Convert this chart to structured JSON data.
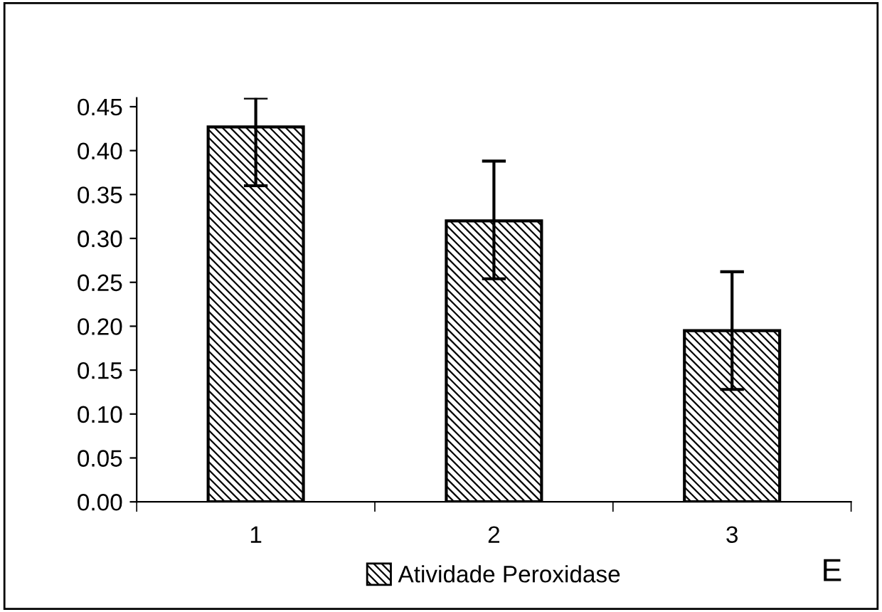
{
  "chart_data": {
    "type": "bar",
    "categories": [
      "1",
      "2",
      "3"
    ],
    "series": [
      {
        "name": "Atividade Peroxidase",
        "color": "#000000",
        "values": [
          0.427,
          0.32,
          0.195
        ],
        "errors": [
          [
            0.36,
            0.46
          ],
          [
            0.254,
            0.388
          ],
          [
            0.128,
            0.262
          ]
        ]
      }
    ],
    "ylim": [
      0,
      0.46
    ],
    "yticks": [
      {
        "value": 0,
        "label": "0.00"
      },
      {
        "value": 0.05,
        "label": "0.05"
      },
      {
        "value": 0.1,
        "label": "0.10"
      },
      {
        "value": 0.15,
        "label": "0.15"
      },
      {
        "value": 0.2,
        "label": "0.20"
      },
      {
        "value": 0.25,
        "label": "0.25"
      },
      {
        "value": 0.3,
        "label": "0.30"
      },
      {
        "value": 0.35,
        "label": "0.35"
      },
      {
        "value": 0.4,
        "label": "0.40"
      },
      {
        "value": 0.45,
        "label": "0.45"
      }
    ],
    "grid": false,
    "legend": "bottom",
    "annotations": [
      "E"
    ]
  }
}
